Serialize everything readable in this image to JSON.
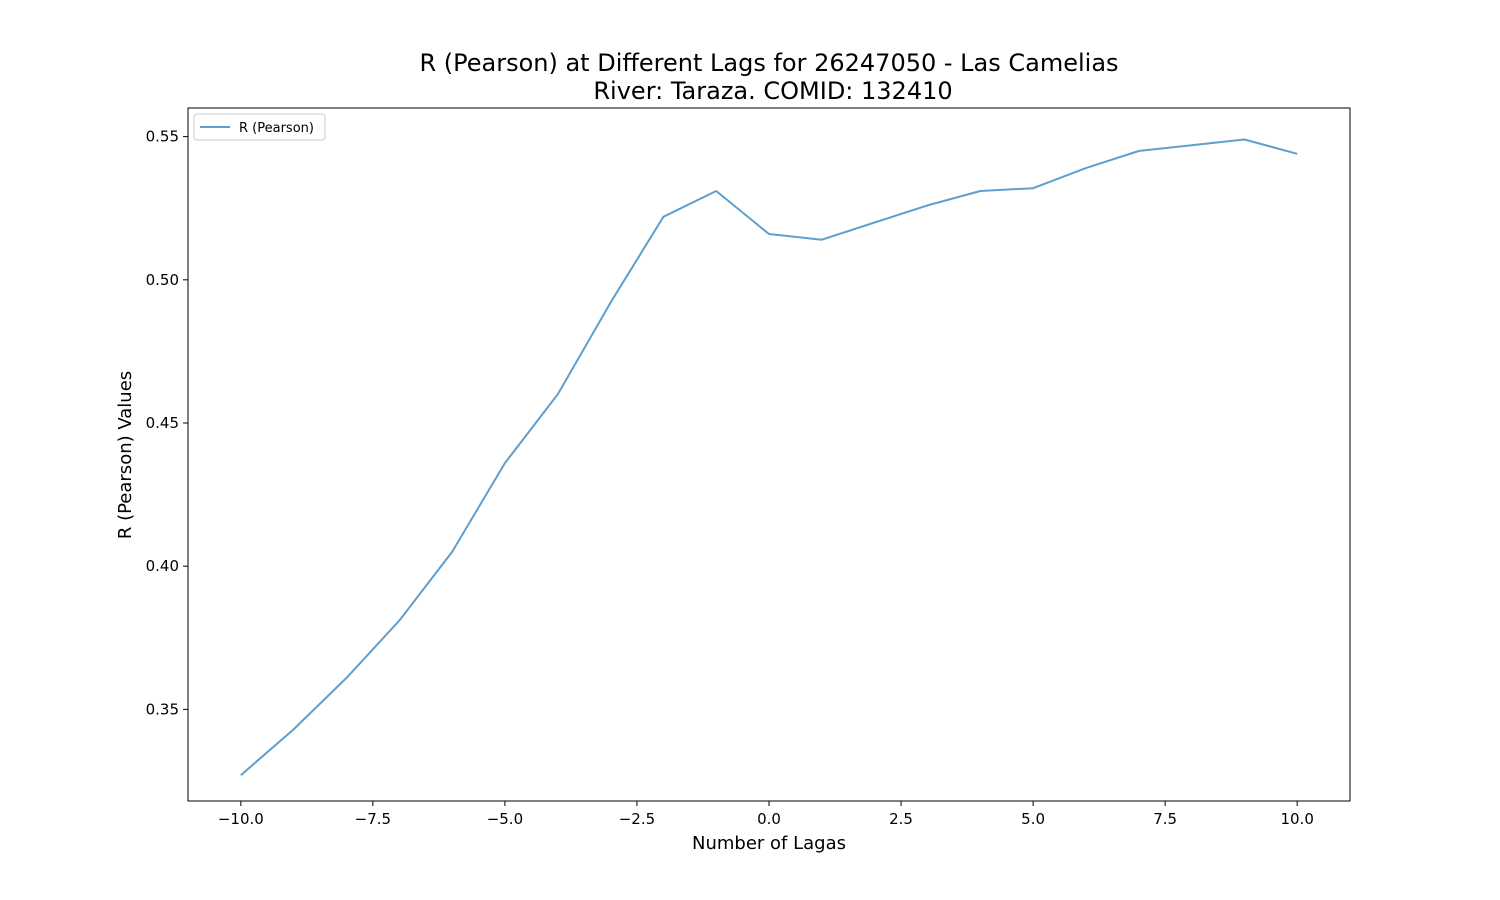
{
  "chart_data": {
    "type": "line",
    "title": "R (Pearson) at Different Lags for 26247050 - Las Camelias",
    "subtitle": "River: Taraza. COMID: 132410",
    "xlabel": "Number of Lagas",
    "ylabel": "R (Pearson) Values",
    "xlim": [
      -11,
      11
    ],
    "ylim": [
      0.318,
      0.56
    ],
    "x_ticks": [
      -10.0,
      -7.5,
      -5.0,
      -2.5,
      0.0,
      2.5,
      5.0,
      7.5,
      10.0
    ],
    "x_tick_labels": [
      "−10.0",
      "−7.5",
      "−5.0",
      "−2.5",
      "0.0",
      "2.5",
      "5.0",
      "7.5",
      "10.0"
    ],
    "y_ticks": [
      0.35,
      0.4,
      0.45,
      0.5,
      0.55
    ],
    "y_tick_labels": [
      "0.35",
      "0.40",
      "0.45",
      "0.50",
      "0.55"
    ],
    "grid": false,
    "legend_position": "top-left",
    "series": [
      {
        "name": "R (Pearson)",
        "color": "#5f9fce",
        "x": [
          -10,
          -9,
          -8,
          -7,
          -6,
          -5,
          -4,
          -3,
          -2,
          -1,
          0,
          1,
          2,
          3,
          4,
          5,
          6,
          7,
          8,
          9,
          10
        ],
        "values": [
          0.327,
          0.343,
          0.361,
          0.381,
          0.405,
          0.436,
          0.46,
          0.492,
          0.522,
          0.531,
          0.516,
          0.514,
          0.52,
          0.526,
          0.531,
          0.532,
          0.539,
          0.545,
          0.547,
          0.549,
          0.544
        ]
      }
    ]
  }
}
